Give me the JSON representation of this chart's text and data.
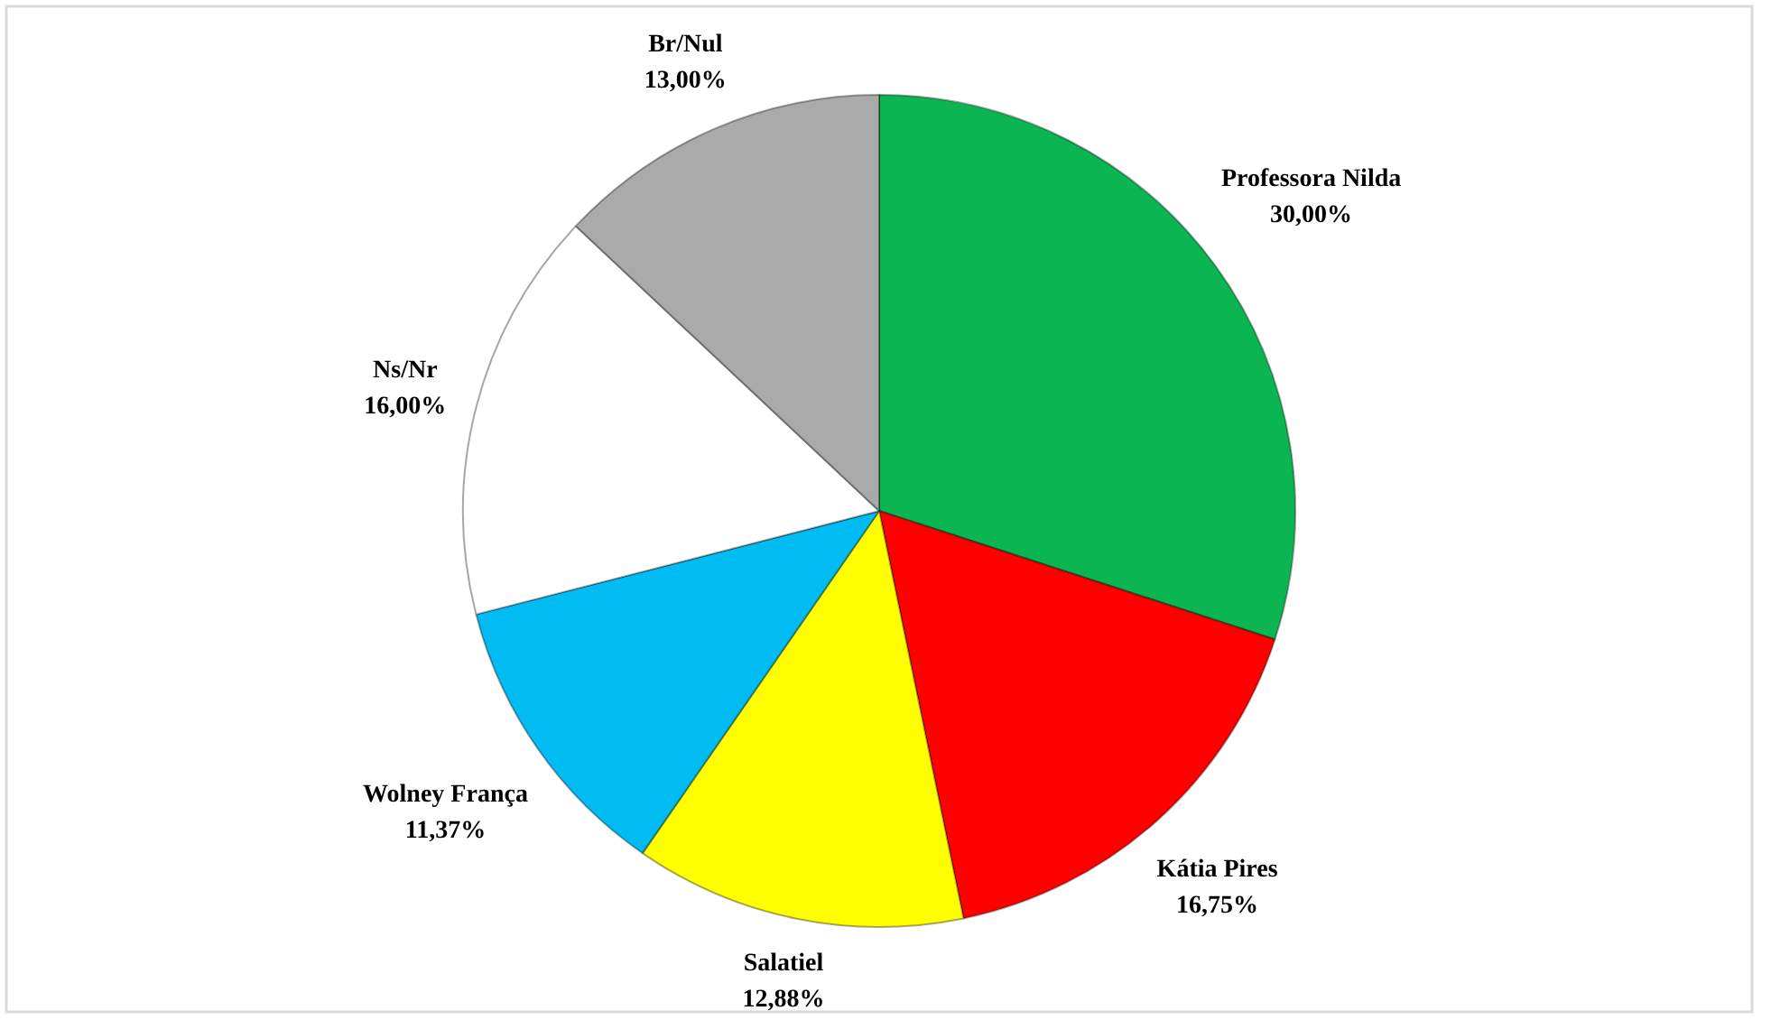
{
  "chart_data": {
    "type": "pie",
    "categories": [
      "Professora Nilda",
      "Kátia Pires",
      "Salatiel",
      "Wolney França",
      "Ns/Nr",
      "Br/Nul"
    ],
    "values": [
      30,
      16.75,
      12.88,
      11.37,
      16,
      13
    ],
    "colors": [
      "#0ab552",
      "#ff0000",
      "#ffff00",
      "#00bcf2",
      "#ffffff",
      "#aaaaaa"
    ],
    "value_labels": [
      "30,00%",
      "16,75%",
      "12,88%",
      "11,37%",
      "16,00%",
      "13,00%"
    ]
  }
}
